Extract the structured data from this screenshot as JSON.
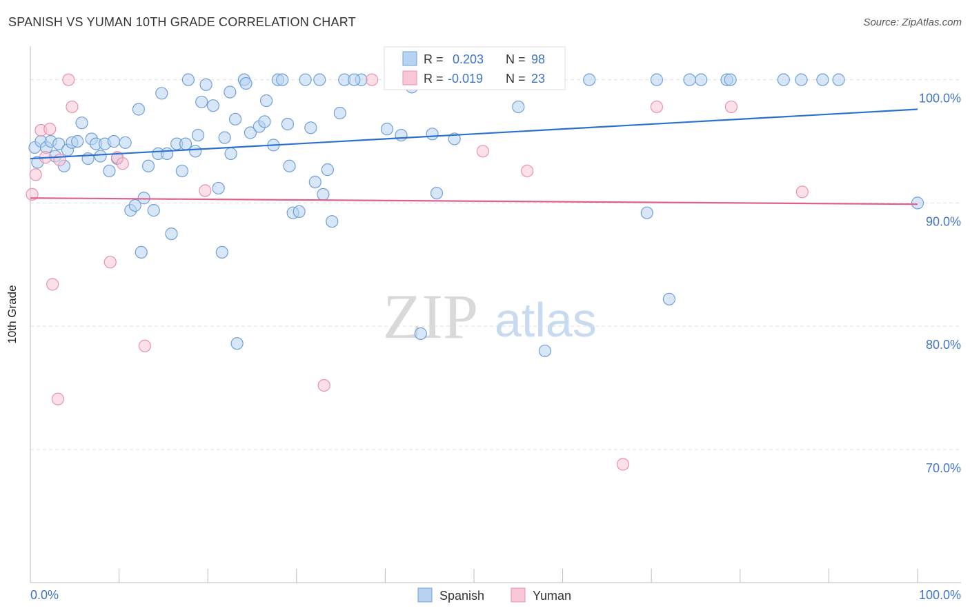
{
  "title": "SPANISH VS YUMAN 10TH GRADE CORRELATION CHART",
  "source": "Source: ZipAtlas.com",
  "watermark": {
    "zip": "ZIP",
    "atlas": "atlas"
  },
  "colors": {
    "spanish_fill": "#b8d3f2",
    "spanish_stroke": "#6f9fd8",
    "spanish_line": "#2b70d0",
    "yuman_fill": "#f8c6d6",
    "yuman_stroke": "#e891ae",
    "yuman_line": "#e0608a",
    "axis_text": "#3f73c4",
    "grid": "#dddddd"
  },
  "legend_top": [
    {
      "r_label": "R =",
      "r_value": "0.203",
      "n_label": "N =",
      "n_value": "98"
    },
    {
      "r_label": "R =",
      "r_value": "-0.019",
      "n_label": "N =",
      "n_value": "23"
    }
  ],
  "chart_data": {
    "type": "scatter",
    "title": "SPANISH VS YUMAN 10TH GRADE CORRELATION CHART",
    "xlabel": "",
    "ylabel": "10th Grade",
    "xlim": [
      0,
      100
    ],
    "ylim": [
      59.2,
      103
    ],
    "x_tick_labels": [
      "0.0%",
      "100.0%"
    ],
    "y_ticks": [
      100,
      90,
      80,
      70
    ],
    "y_tick_labels": [
      "100.0%",
      "90.0%",
      "80.0%",
      "70.0%"
    ],
    "grid": true,
    "legend_position": "bottom-center",
    "series": [
      {
        "name": "Spanish",
        "color": "#6f9fd8",
        "trend": {
          "x": [
            0,
            100
          ],
          "y": [
            93.6,
            97.6
          ]
        },
        "points": [
          [
            0.5,
            94.5
          ],
          [
            0.8,
            93.3
          ],
          [
            1.2,
            95.0
          ],
          [
            1.8,
            94.5
          ],
          [
            2.3,
            95.0
          ],
          [
            2.8,
            93.8
          ],
          [
            3.2,
            94.8
          ],
          [
            3.8,
            93.0
          ],
          [
            4.2,
            94.3
          ],
          [
            4.7,
            94.9
          ],
          [
            5.3,
            95.0
          ],
          [
            5.8,
            96.5
          ],
          [
            6.5,
            93.6
          ],
          [
            6.9,
            95.2
          ],
          [
            7.4,
            94.8
          ],
          [
            7.9,
            93.8
          ],
          [
            8.4,
            94.8
          ],
          [
            8.9,
            92.6
          ],
          [
            9.4,
            95.0
          ],
          [
            9.8,
            93.6
          ],
          [
            10.7,
            94.9
          ],
          [
            11.3,
            89.4
          ],
          [
            11.8,
            89.8
          ],
          [
            12.2,
            97.6
          ],
          [
            12.5,
            86.0
          ],
          [
            12.8,
            90.4
          ],
          [
            13.3,
            93.0
          ],
          [
            13.9,
            89.4
          ],
          [
            14.4,
            94.0
          ],
          [
            14.8,
            98.9
          ],
          [
            15.4,
            94.0
          ],
          [
            15.9,
            87.5
          ],
          [
            16.5,
            94.8
          ],
          [
            17.1,
            92.6
          ],
          [
            17.5,
            94.8
          ],
          [
            17.8,
            100.0
          ],
          [
            18.6,
            94.2
          ],
          [
            18.9,
            95.5
          ],
          [
            19.3,
            98.2
          ],
          [
            19.8,
            99.6
          ],
          [
            20.6,
            97.9
          ],
          [
            21.2,
            91.2
          ],
          [
            21.6,
            86.0
          ],
          [
            21.9,
            95.3
          ],
          [
            22.6,
            94.0
          ],
          [
            23.1,
            96.8
          ],
          [
            23.3,
            78.6
          ],
          [
            24.1,
            100.0
          ],
          [
            24.3,
            99.7
          ],
          [
            24.8,
            95.7
          ],
          [
            25.8,
            96.2
          ],
          [
            26.4,
            96.6
          ],
          [
            26.6,
            98.3
          ],
          [
            27.4,
            94.7
          ],
          [
            27.9,
            100.0
          ],
          [
            28.4,
            100.0
          ],
          [
            29.0,
            96.4
          ],
          [
            29.2,
            93.0
          ],
          [
            29.6,
            89.2
          ],
          [
            30.3,
            89.3
          ],
          [
            31.6,
            96.1
          ],
          [
            32.1,
            91.7
          ],
          [
            32.6,
            100.0
          ],
          [
            33.0,
            90.7
          ],
          [
            33.5,
            92.7
          ],
          [
            34.0,
            88.5
          ],
          [
            34.9,
            97.3
          ],
          [
            35.4,
            100.0
          ],
          [
            37.3,
            100.0
          ],
          [
            40.2,
            96.0
          ],
          [
            41.0,
            100.0
          ],
          [
            41.8,
            95.5
          ],
          [
            44.0,
            79.4
          ],
          [
            45.3,
            95.6
          ],
          [
            45.8,
            90.8
          ],
          [
            47.8,
            95.2
          ],
          [
            55.0,
            97.8
          ],
          [
            55.3,
            100.0
          ],
          [
            58.0,
            78.0
          ],
          [
            63.0,
            100.0
          ],
          [
            69.5,
            89.2
          ],
          [
            70.6,
            100.0
          ],
          [
            72.0,
            82.2
          ],
          [
            74.3,
            100.0
          ],
          [
            75.6,
            100.0
          ],
          [
            78.5,
            100.0
          ],
          [
            78.9,
            100.0
          ],
          [
            84.9,
            100.0
          ],
          [
            86.9,
            100.0
          ],
          [
            89.3,
            100.0
          ],
          [
            91.1,
            100.0
          ],
          [
            43.0,
            99.4
          ],
          [
            36.5,
            100.0
          ],
          [
            58.3,
            100.0
          ],
          [
            100.0,
            90.0
          ],
          [
            31.0,
            100.0
          ],
          [
            22.5,
            99.0
          ],
          [
            53.2,
            100.0
          ]
        ]
      },
      {
        "name": "Yuman",
        "color": "#e891ae",
        "trend": {
          "x": [
            0,
            100
          ],
          "y": [
            90.4,
            89.9
          ]
        },
        "points": [
          [
            0.2,
            90.7
          ],
          [
            0.6,
            92.3
          ],
          [
            1.2,
            95.9
          ],
          [
            1.7,
            93.7
          ],
          [
            2.2,
            96.0
          ],
          [
            2.5,
            83.4
          ],
          [
            3.1,
            74.1
          ],
          [
            3.3,
            93.5
          ],
          [
            4.3,
            100.0
          ],
          [
            4.7,
            97.8
          ],
          [
            9.0,
            85.2
          ],
          [
            9.8,
            93.7
          ],
          [
            10.4,
            93.2
          ],
          [
            12.9,
            78.4
          ],
          [
            19.7,
            91.0
          ],
          [
            33.1,
            75.2
          ],
          [
            38.5,
            100.0
          ],
          [
            51.0,
            94.2
          ],
          [
            56.0,
            92.6
          ],
          [
            66.8,
            68.8
          ],
          [
            70.6,
            97.8
          ],
          [
            79.0,
            97.8
          ],
          [
            87.0,
            90.9
          ]
        ]
      }
    ]
  }
}
